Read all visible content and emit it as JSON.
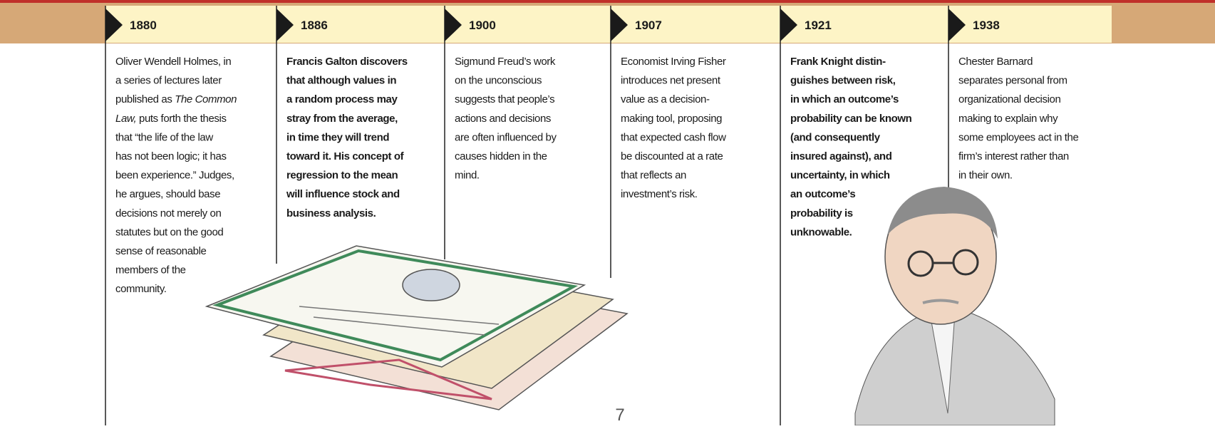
{
  "timeline": {
    "entries": [
      {
        "year": "1880",
        "bold": false,
        "lines": [
          "Oliver Wendell Holmes, in",
          "a series of lectures later",
          {
            "parts": [
              {
                "text": "published as "
              },
              {
                "text": "The Common",
                "italic": true
              }
            ]
          },
          {
            "parts": [
              {
                "text": "Law,",
                "italic": true
              },
              {
                "text": " puts forth the thesis"
              }
            ]
          },
          "that “the life of the law",
          "has not been logic; it has",
          "been experience.” Judges,",
          "he argues, should base",
          "decisions not merely on",
          "statutes but on the good",
          "sense of reasonable",
          "members of the",
          "community."
        ]
      },
      {
        "year": "1886",
        "bold": true,
        "lines": [
          "Francis Galton discovers",
          "that although values in",
          "a random process may",
          "stray from the average,",
          "in time they will trend",
          "toward it. His concept of",
          "regression to the mean",
          "will influence stock and",
          "business analysis."
        ]
      },
      {
        "year": "1900",
        "bold": false,
        "lines": [
          "Sigmund Freud’s work",
          "on the unconscious",
          "suggests that people’s",
          "actions and decisions",
          "are often influenced by",
          "causes hidden in the",
          "mind."
        ]
      },
      {
        "year": "1907",
        "bold": false,
        "lines": [
          "Economist Irving Fisher",
          "introduces net present",
          "value as a decision-",
          "making tool, proposing",
          "that expected cash flow",
          "be discounted at a rate",
          "that reflects an",
          "investment’s risk."
        ]
      },
      {
        "year": "1921",
        "bold": true,
        "lines": [
          "Frank Knight distin-",
          "guishes between risk,",
          "in which an outcome’s",
          "probability can be known",
          "(and consequently",
          "insured against), and",
          "uncertainty, in which",
          "an outcome’s",
          "probability is",
          "unknowable."
        ]
      },
      {
        "year": "1938",
        "bold": false,
        "lines": [
          "Chester Barnard",
          "separates personal from",
          "organizational decision",
          "making to explain why",
          "some employees act in the",
          "firm’s interest rather than",
          "in their own."
        ]
      }
    ],
    "page_number": "7"
  }
}
